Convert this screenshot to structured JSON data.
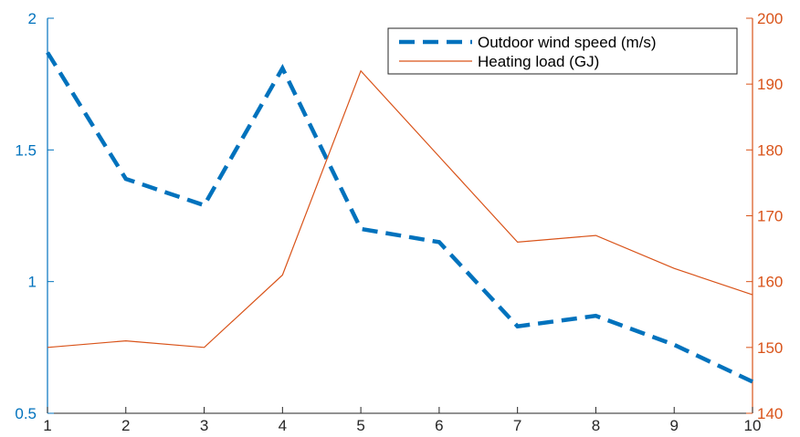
{
  "chart_data": {
    "type": "line",
    "title": "",
    "xlabel": "",
    "ylabel_left": "",
    "ylabel_right": "",
    "x": [
      1,
      2,
      3,
      4,
      5,
      6,
      7,
      8,
      9,
      10
    ],
    "xlim": [
      1,
      10
    ],
    "x_ticks": [
      "1",
      "2",
      "3",
      "4",
      "5",
      "6",
      "7",
      "8",
      "9",
      "10"
    ],
    "y_left_lim": [
      0.5,
      2
    ],
    "y_left_ticks": [
      "0.5",
      "1",
      "1.5",
      "2"
    ],
    "y_left_tick_values": [
      0.5,
      1,
      1.5,
      2
    ],
    "y_right_lim": [
      140,
      200
    ],
    "y_right_ticks": [
      "140",
      "150",
      "160",
      "170",
      "180",
      "190",
      "200"
    ],
    "y_right_tick_values": [
      140,
      150,
      160,
      170,
      180,
      190,
      200
    ],
    "grid": false,
    "legend_position": "top-right",
    "series": [
      {
        "name": "Outdoor wind speed (m/s)",
        "axis": "left",
        "style": "dashed",
        "color": "#0072BD",
        "values": [
          1.87,
          1.39,
          1.29,
          1.81,
          1.2,
          1.15,
          0.83,
          0.87,
          0.76,
          0.62
        ]
      },
      {
        "name": "Heating load (GJ)",
        "axis": "right",
        "style": "solid",
        "color": "#D95319",
        "values": [
          150,
          151,
          150,
          161,
          192,
          179,
          166,
          167,
          162,
          158
        ]
      }
    ]
  }
}
